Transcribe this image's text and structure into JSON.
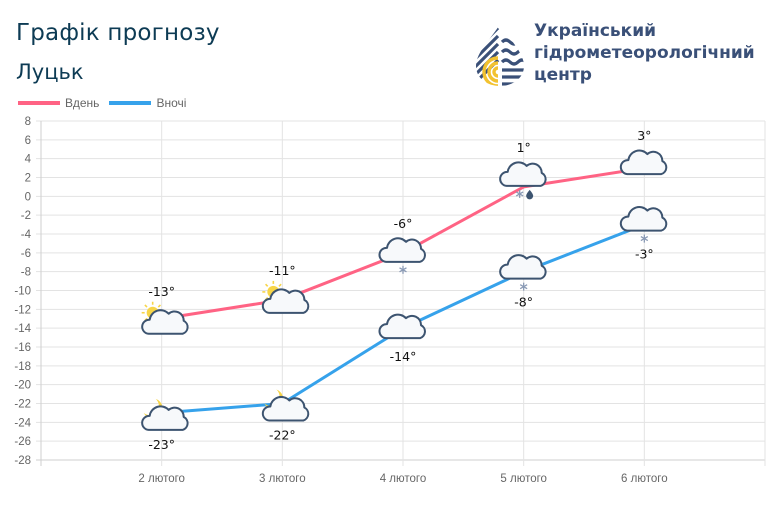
{
  "header": {
    "title": "Графік прогнозу",
    "city": "Луцьк"
  },
  "organization": {
    "line1": "Український",
    "line2": "гідрометеорологічний",
    "line3": "центр"
  },
  "legend": [
    {
      "label": "Вдень",
      "color": "#ff6384"
    },
    {
      "label": "Вночі",
      "color": "#36a2eb"
    }
  ],
  "chart_data": {
    "type": "line",
    "title": "Графік прогнозу",
    "subtitle": "Луцьк",
    "categories": [
      "2 лютого",
      "3 лютого",
      "4 лютого",
      "5 лютого",
      "6 лютого"
    ],
    "series": [
      {
        "name": "Вдень",
        "color": "#ff6384",
        "values": [
          -13,
          -11,
          -6,
          1,
          3
        ],
        "labels": [
          "-13°",
          "-11°",
          "-6°",
          "1°",
          "3°"
        ],
        "icons": [
          "partly-sunny",
          "partly-sunny",
          "cloud-snow",
          "cloud-snow-rain",
          "cloud"
        ]
      },
      {
        "name": "Вночі",
        "color": "#36a2eb",
        "values": [
          -23,
          -22,
          -14,
          -8,
          -3
        ],
        "labels": [
          "-23°",
          "-22°",
          "-14°",
          "-8°",
          "-3°"
        ],
        "icons": [
          "partly-cloudy-night",
          "partly-cloudy-night",
          "cloud",
          "cloud-snow",
          "cloud-snow"
        ]
      }
    ],
    "yticks": [
      8,
      6,
      4,
      2,
      0,
      -2,
      -4,
      -6,
      -8,
      -10,
      -12,
      -14,
      -16,
      -18,
      -20,
      -22,
      -24,
      -26,
      -28
    ],
    "ylim": [
      -28,
      8
    ],
    "xlabel": "",
    "ylabel": "",
    "grid": true,
    "legend_position": "top-left"
  }
}
